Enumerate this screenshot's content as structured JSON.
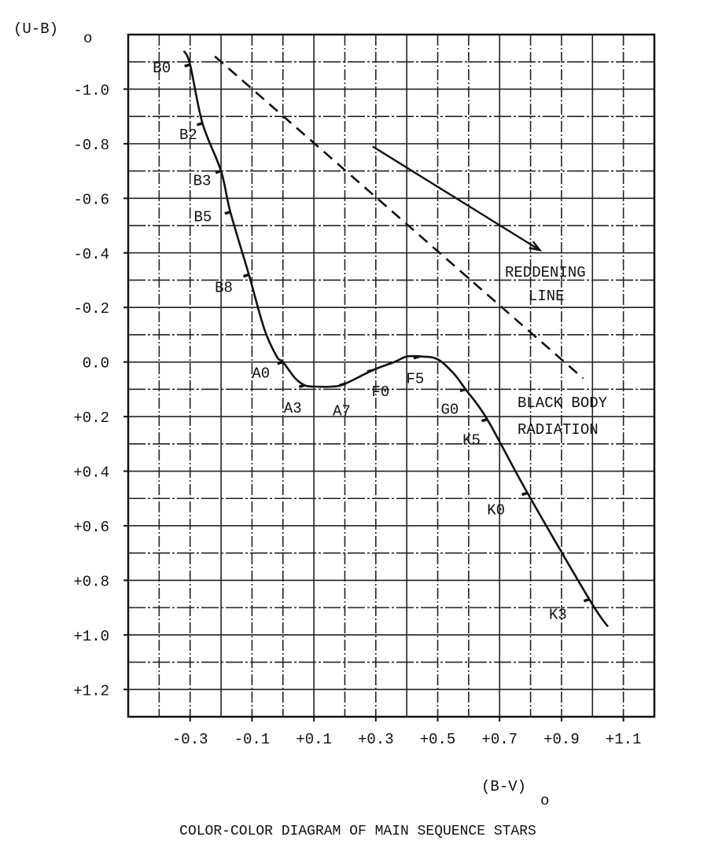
{
  "chart_data": {
    "type": "line",
    "title": "COLOR-COLOR DIAGRAM OF MAIN SEQUENCE STARS",
    "xlabel": "(B-V)",
    "xlabel_subscript": "o",
    "ylabel": "(U-B)",
    "ylabel_subscript": "o",
    "xlim": [
      -0.5,
      1.2
    ],
    "ylim": [
      -1.2,
      1.3
    ],
    "y_inverted": true,
    "grid": true,
    "x_ticks": [
      -0.3,
      -0.1,
      0.1,
      0.3,
      0.5,
      0.7,
      0.9,
      1.1
    ],
    "x_tick_labels": [
      "-0.3",
      "-0.1",
      "+0.1",
      "+0.3",
      "+0.5",
      "+0.7",
      "+0.9",
      "+1.1"
    ],
    "y_ticks": [
      -1.0,
      -0.8,
      -0.6,
      -0.4,
      -0.2,
      0.0,
      0.2,
      0.4,
      0.6,
      0.8,
      1.0,
      1.2
    ],
    "y_tick_labels": [
      "-1.0",
      "-0.8",
      "-0.6",
      "-0.4",
      "-0.2",
      "0.0",
      "+0.2",
      "+0.4",
      "+0.6",
      "+0.8",
      "+1.0",
      "+1.2"
    ],
    "main_sequence": {
      "x": [
        -0.32,
        -0.3,
        -0.26,
        -0.2,
        -0.17,
        -0.11,
        -0.06,
        -0.02,
        0.0,
        0.04,
        0.07,
        0.1,
        0.16,
        0.2,
        0.29,
        0.36,
        0.4,
        0.45,
        0.5,
        0.55,
        0.59,
        0.66,
        0.79,
        0.99,
        1.05
      ],
      "y": [
        -1.14,
        -1.09,
        -0.875,
        -0.7,
        -0.55,
        -0.32,
        -0.12,
        -0.02,
        0.0,
        0.06,
        0.085,
        0.09,
        0.09,
        0.08,
        0.03,
        0.0,
        -0.02,
        -0.02,
        -0.01,
        0.04,
        0.1,
        0.21,
        0.48,
        0.87,
        0.97
      ]
    },
    "spectral_types": [
      {
        "label": "B0",
        "x": -0.3,
        "y": -1.09
      },
      {
        "label": "B2",
        "x": -0.26,
        "y": -0.875
      },
      {
        "label": "B3",
        "x": -0.2,
        "y": -0.7
      },
      {
        "label": "B5",
        "x": -0.17,
        "y": -0.55
      },
      {
        "label": "B8",
        "x": -0.11,
        "y": -0.32
      },
      {
        "label": "A0",
        "x": 0.0,
        "y": 0.0
      },
      {
        "label": "A3",
        "x": 0.07,
        "y": 0.085
      },
      {
        "label": "A7",
        "x": 0.2,
        "y": 0.08
      },
      {
        "label": "F0",
        "x": 0.29,
        "y": 0.03
      },
      {
        "label": "F5",
        "x": 0.44,
        "y": -0.02
      },
      {
        "label": "G0",
        "x": 0.59,
        "y": 0.1
      },
      {
        "label": "K5",
        "x": 0.66,
        "y": 0.21
      },
      {
        "label": "K0",
        "x": 0.79,
        "y": 0.48
      },
      {
        "label": "K3",
        "x": 0.99,
        "y": 0.87
      }
    ],
    "black_body_line": {
      "label": [
        "BLACK BODY",
        "RADIATION"
      ],
      "x": [
        -0.22,
        0.97
      ],
      "y": [
        -1.12,
        0.06
      ],
      "style": "dashed"
    },
    "reddening_line": {
      "label": [
        "REDDENING",
        "LINE"
      ],
      "x": [
        0.29,
        0.83
      ],
      "y": [
        -0.79,
        -0.41
      ],
      "style": "arrow"
    }
  }
}
